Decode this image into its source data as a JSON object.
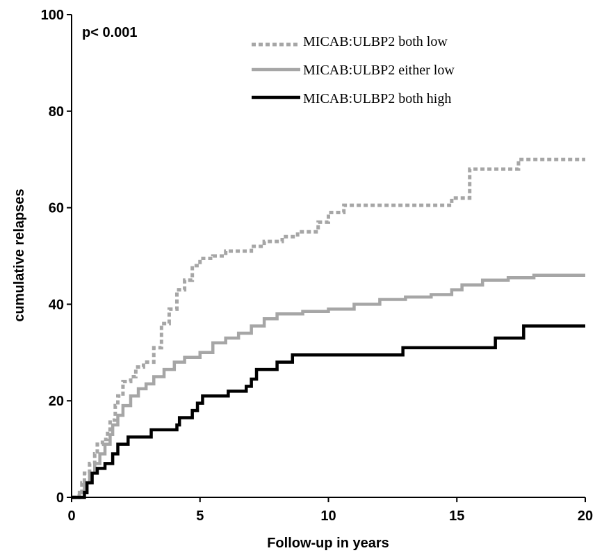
{
  "chart_data": {
    "type": "line",
    "step": true,
    "xlabel": "Follow-up in years",
    "ylabel": "cumulative relapses",
    "xlim": [
      0,
      20
    ],
    "ylim": [
      0,
      100
    ],
    "xticks": [
      0,
      5,
      10,
      15,
      20
    ],
    "yticks": [
      0,
      20,
      40,
      60,
      80,
      100
    ],
    "annotation": "p< 0.001",
    "legend_position": "top-right",
    "series": [
      {
        "name": "MICAB:ULBP2 both low",
        "color": "#a6a6a6",
        "style": "dotted",
        "points": [
          [
            0,
            0
          ],
          [
            0.3,
            1
          ],
          [
            0.4,
            3
          ],
          [
            0.5,
            5
          ],
          [
            0.7,
            7
          ],
          [
            0.9,
            9
          ],
          [
            1.0,
            11
          ],
          [
            1.2,
            12
          ],
          [
            1.4,
            14
          ],
          [
            1.5,
            16
          ],
          [
            1.7,
            19
          ],
          [
            1.8,
            21
          ],
          [
            2.0,
            24
          ],
          [
            2.3,
            25
          ],
          [
            2.5,
            27
          ],
          [
            2.8,
            28
          ],
          [
            3.2,
            31
          ],
          [
            3.5,
            36
          ],
          [
            3.8,
            39
          ],
          [
            4.1,
            43
          ],
          [
            4.4,
            45
          ],
          [
            4.7,
            48
          ],
          [
            5.0,
            49.5
          ],
          [
            5.5,
            50
          ],
          [
            6.0,
            51
          ],
          [
            7.0,
            52
          ],
          [
            7.5,
            53
          ],
          [
            8.2,
            54
          ],
          [
            8.8,
            55
          ],
          [
            9.6,
            57
          ],
          [
            10.0,
            59
          ],
          [
            10.6,
            60.5
          ],
          [
            13.5,
            60.5
          ],
          [
            14.8,
            62
          ],
          [
            15.5,
            68
          ],
          [
            16.9,
            68
          ],
          [
            17.4,
            70
          ],
          [
            20,
            70
          ]
        ]
      },
      {
        "name": "MICAB:ULBP2 either low",
        "color": "#a6a6a6",
        "style": "solid",
        "points": [
          [
            0,
            0
          ],
          [
            0.3,
            1
          ],
          [
            0.5,
            3
          ],
          [
            0.7,
            5
          ],
          [
            0.9,
            7
          ],
          [
            1.1,
            9
          ],
          [
            1.3,
            11
          ],
          [
            1.5,
            13
          ],
          [
            1.6,
            15
          ],
          [
            1.8,
            17
          ],
          [
            2.0,
            19
          ],
          [
            2.3,
            21
          ],
          [
            2.6,
            22.5
          ],
          [
            2.9,
            23.5
          ],
          [
            3.2,
            25
          ],
          [
            3.6,
            26.5
          ],
          [
            4.0,
            28
          ],
          [
            4.4,
            29
          ],
          [
            5.0,
            30
          ],
          [
            5.5,
            32
          ],
          [
            6.0,
            33
          ],
          [
            6.5,
            34
          ],
          [
            7.0,
            35.5
          ],
          [
            7.5,
            37
          ],
          [
            8.0,
            38
          ],
          [
            9.0,
            38.5
          ],
          [
            10.0,
            39
          ],
          [
            11.0,
            40
          ],
          [
            12.0,
            41
          ],
          [
            13.0,
            41.5
          ],
          [
            14.0,
            42
          ],
          [
            14.8,
            43
          ],
          [
            15.2,
            44
          ],
          [
            16.0,
            45
          ],
          [
            17.0,
            45.5
          ],
          [
            18.0,
            46
          ],
          [
            20,
            46
          ]
        ]
      },
      {
        "name": "MICAB:ULBP2 both high",
        "color": "#000000",
        "style": "solid",
        "points": [
          [
            0,
            0
          ],
          [
            0.5,
            1
          ],
          [
            0.6,
            3
          ],
          [
            0.8,
            5
          ],
          [
            1.0,
            6
          ],
          [
            1.3,
            7
          ],
          [
            1.6,
            9
          ],
          [
            1.8,
            11
          ],
          [
            2.2,
            12.5
          ],
          [
            3.1,
            14
          ],
          [
            4.1,
            15
          ],
          [
            4.2,
            16.5
          ],
          [
            4.7,
            18
          ],
          [
            4.9,
            19.5
          ],
          [
            5.1,
            21
          ],
          [
            6.1,
            22
          ],
          [
            6.8,
            23
          ],
          [
            7.0,
            24.5
          ],
          [
            7.2,
            26.5
          ],
          [
            8.0,
            28
          ],
          [
            8.6,
            29.5
          ],
          [
            12.9,
            31
          ],
          [
            16.5,
            33
          ],
          [
            17.6,
            35.5
          ],
          [
            20,
            35.5
          ]
        ]
      }
    ]
  },
  "colors": {
    "axis": "#000000",
    "gray": "#a6a6a6",
    "black": "#000000"
  }
}
